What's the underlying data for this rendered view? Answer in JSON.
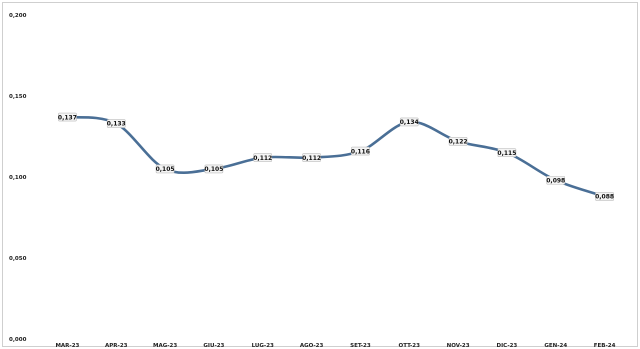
{
  "chart_data": {
    "type": "line",
    "title": "",
    "xlabel": "",
    "ylabel": "",
    "ylim": [
      0.0,
      0.2
    ],
    "yticks": [
      {
        "value": 0.0,
        "label": "0,000"
      },
      {
        "value": 0.05,
        "label": "0,050"
      },
      {
        "value": 0.1,
        "label": "0,100"
      },
      {
        "value": 0.15,
        "label": "0,150"
      },
      {
        "value": 0.2,
        "label": "0,200"
      }
    ],
    "grid": false,
    "legend": "none",
    "categories": [
      "MAR-23",
      "APR-23",
      "MAG-23",
      "GIU-23",
      "LUG-23",
      "AGO-23",
      "SET-23",
      "OTT-23",
      "NOV-23",
      "DIC-23",
      "GEN-24",
      "FEB-24"
    ],
    "series": [
      {
        "values": [
          0.137,
          0.133,
          0.105,
          0.105,
          0.112,
          0.112,
          0.116,
          0.134,
          0.122,
          0.115,
          0.098,
          0.088
        ],
        "labels": [
          "0,137",
          "0,133",
          "0,105",
          "0,105",
          "0,112",
          "0,112",
          "0,116",
          "0,134",
          "0,122",
          "0,115",
          "0,098",
          "0,088"
        ],
        "color": "#4a6f96"
      }
    ]
  }
}
